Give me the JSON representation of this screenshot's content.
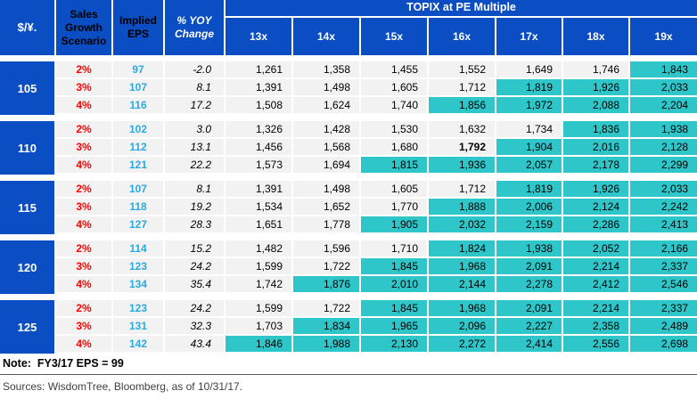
{
  "chart_data": {
    "type": "table",
    "title": "TOPIX at PE Multiple",
    "header": {
      "fx_label": "$/¥.",
      "growth_label": "Sales Growth Scenario",
      "eps_label": "Implied EPS",
      "yoy_label": "% YOY Change",
      "topix_label": "TOPIX at PE Multiple",
      "pe_columns": [
        "13x",
        "14x",
        "15x",
        "16x",
        "17x",
        "18x",
        "19x"
      ]
    },
    "blocks": [
      {
        "fx": "105",
        "rows": [
          {
            "growth": "2%",
            "eps": "97",
            "yoy": "-2.0",
            "values": [
              "1,261",
              "1,358",
              "1,455",
              "1,552",
              "1,649",
              "1,746",
              "1,843"
            ],
            "highlight_start": 6
          },
          {
            "growth": "3%",
            "eps": "107",
            "yoy": "8.1",
            "values": [
              "1,391",
              "1,498",
              "1,605",
              "1,712",
              "1,819",
              "1,926",
              "2,033"
            ],
            "highlight_start": 4
          },
          {
            "growth": "4%",
            "eps": "116",
            "yoy": "17.2",
            "values": [
              "1,508",
              "1,624",
              "1,740",
              "1,856",
              "1,972",
              "2,088",
              "2,204"
            ],
            "highlight_start": 3
          }
        ]
      },
      {
        "fx": "110",
        "rows": [
          {
            "growth": "2%",
            "eps": "102",
            "yoy": "3.0",
            "values": [
              "1,326",
              "1,428",
              "1,530",
              "1,632",
              "1,734",
              "1,836",
              "1,938"
            ],
            "highlight_start": 5
          },
          {
            "growth": "3%",
            "eps": "112",
            "yoy": "13.1",
            "values": [
              "1,456",
              "1,568",
              "1,680",
              "1,792",
              "1,904",
              "2,016",
              "2,128"
            ],
            "highlight_start": 4,
            "bold_index": 3
          },
          {
            "growth": "4%",
            "eps": "121",
            "yoy": "22.2",
            "values": [
              "1,573",
              "1,694",
              "1,815",
              "1,936",
              "2,057",
              "2,178",
              "2,299"
            ],
            "highlight_start": 2
          }
        ]
      },
      {
        "fx": "115",
        "rows": [
          {
            "growth": "2%",
            "eps": "107",
            "yoy": "8.1",
            "values": [
              "1,391",
              "1,498",
              "1,605",
              "1,712",
              "1,819",
              "1,926",
              "2,033"
            ],
            "highlight_start": 4
          },
          {
            "growth": "3%",
            "eps": "118",
            "yoy": "19.2",
            "values": [
              "1,534",
              "1,652",
              "1,770",
              "1,888",
              "2,006",
              "2,124",
              "2,242"
            ],
            "highlight_start": 3
          },
          {
            "growth": "4%",
            "eps": "127",
            "yoy": "28.3",
            "values": [
              "1,651",
              "1,778",
              "1,905",
              "2,032",
              "2,159",
              "2,286",
              "2,413"
            ],
            "highlight_start": 2
          }
        ]
      },
      {
        "fx": "120",
        "rows": [
          {
            "growth": "2%",
            "eps": "114",
            "yoy": "15.2",
            "values": [
              "1,482",
              "1,596",
              "1,710",
              "1,824",
              "1,938",
              "2,052",
              "2,166"
            ],
            "highlight_start": 3
          },
          {
            "growth": "3%",
            "eps": "123",
            "yoy": "24.2",
            "values": [
              "1,599",
              "1,722",
              "1,845",
              "1,968",
              "2,091",
              "2,214",
              "2,337"
            ],
            "highlight_start": 2
          },
          {
            "growth": "4%",
            "eps": "134",
            "yoy": "35.4",
            "values": [
              "1,742",
              "1,876",
              "2,010",
              "2,144",
              "2,278",
              "2,412",
              "2,546"
            ],
            "highlight_start": 1
          }
        ]
      },
      {
        "fx": "125",
        "rows": [
          {
            "growth": "2%",
            "eps": "123",
            "yoy": "24.2",
            "values": [
              "1,599",
              "1,722",
              "1,845",
              "1,968",
              "2,091",
              "2,214",
              "2,337"
            ],
            "highlight_start": 2
          },
          {
            "growth": "3%",
            "eps": "131",
            "yoy": "32.3",
            "values": [
              "1,703",
              "1,834",
              "1,965",
              "2,096",
              "2,227",
              "2,358",
              "2,489"
            ],
            "highlight_start": 1
          },
          {
            "growth": "4%",
            "eps": "142",
            "yoy": "43.4",
            "values": [
              "1,846",
              "1,988",
              "2,130",
              "2,272",
              "2,414",
              "2,556",
              "2,698"
            ],
            "highlight_start": 0
          }
        ]
      }
    ]
  },
  "note": "Note:  FY3/17 EPS = 99",
  "sources": "Sources: WisdomTree, Bloomberg, as of 10/31/17.",
  "colors": {
    "header_blue": "#0B4DC2",
    "highlight_teal": "#2EC6C9",
    "cell_gray": "#F2F2F2",
    "eps_blue": "#29ABE2",
    "growth_red": "#FF0000"
  }
}
